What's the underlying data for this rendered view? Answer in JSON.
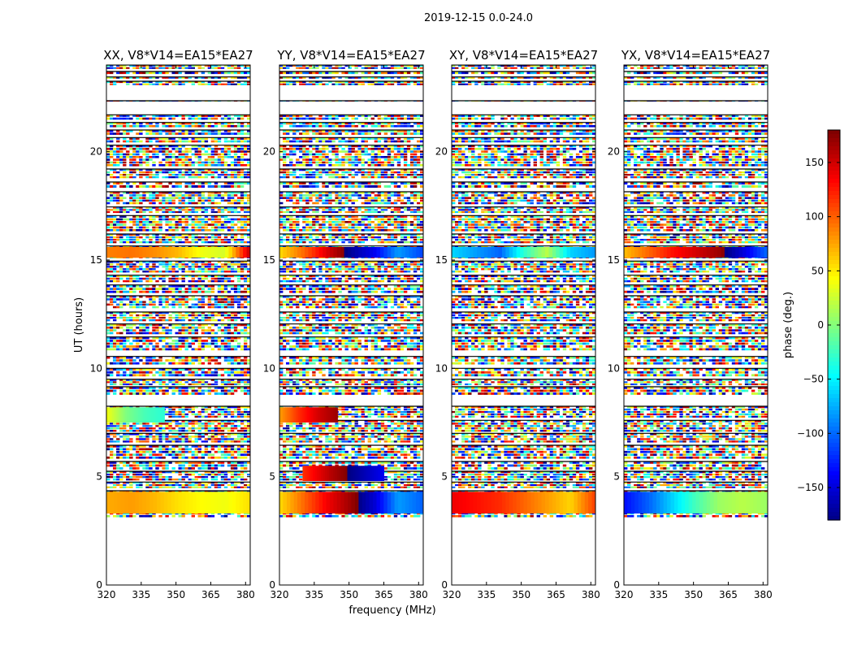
{
  "figure": {
    "suptitle": "2019-12-15 0.0-24.0"
  },
  "chart_data": {
    "type": "heatmap",
    "suptitle": "2019-12-15 0.0-24.0",
    "xlabel": "frequency (MHz)",
    "ylabel": "UT (hours)",
    "xlim": [
      320,
      382
    ],
    "ylim": [
      0,
      24
    ],
    "xticks": [
      320,
      335,
      350,
      365,
      380
    ],
    "yticks": [
      0,
      5,
      10,
      15,
      20
    ],
    "panels": [
      {
        "title": "XX, V8*V14=EA15*EA27",
        "polarization": "XX",
        "coherent_bands": [
          {
            "ut": [
              3.3,
              4.3
            ],
            "freq": [
              320,
              382
            ],
            "phase": [
              75,
              80,
              70,
              55,
              45,
              40,
              55
            ]
          },
          {
            "ut": [
              15.1,
              15.6
            ],
            "freq": [
              320,
              382
            ],
            "phase": [
              90,
              95,
              85,
              70,
              40,
              30,
              150
            ]
          },
          {
            "ut": [
              7.5,
              8.2
            ],
            "freq": [
              320,
              345
            ],
            "phase": [
              40,
              0,
              -20,
              -30
            ]
          }
        ]
      },
      {
        "title": "YY, V8*V14=EA15*EA27",
        "polarization": "YY",
        "coherent_bands": [
          {
            "ut": [
              3.3,
              4.3
            ],
            "freq": [
              320,
              382
            ],
            "phase": [
              60,
              100,
              140,
              170,
              -150,
              -80,
              -100
            ]
          },
          {
            "ut": [
              15.1,
              15.6
            ],
            "freq": [
              320,
              382
            ],
            "phase": [
              60,
              100,
              150,
              -170,
              -140,
              -80,
              -110
            ]
          },
          {
            "ut": [
              7.5,
              8.2
            ],
            "freq": [
              320,
              345
            ],
            "phase": [
              80,
              120,
              150,
              170
            ]
          },
          {
            "ut": [
              4.8,
              5.5
            ],
            "freq": [
              330,
              365
            ],
            "phase": [
              120,
              160,
              -170,
              -140
            ]
          }
        ]
      },
      {
        "title": "XY, V8*V14=EA15*EA27",
        "polarization": "XY",
        "coherent_bands": [
          {
            "ut": [
              3.3,
              4.3
            ],
            "freq": [
              320,
              382
            ],
            "phase": [
              140,
              130,
              120,
              100,
              80,
              60,
              110
            ]
          },
          {
            "ut": [
              15.1,
              15.6
            ],
            "freq": [
              320,
              382
            ],
            "phase": [
              -60,
              -80,
              -100,
              -30,
              20,
              -60,
              -80
            ]
          }
        ]
      },
      {
        "title": "YX, V8*V14=EA15*EA27",
        "polarization": "YX",
        "coherent_bands": [
          {
            "ut": [
              3.3,
              4.3
            ],
            "freq": [
              320,
              382
            ],
            "phase": [
              -130,
              -100,
              -60,
              -20,
              10,
              20,
              10
            ]
          },
          {
            "ut": [
              15.1,
              15.6
            ],
            "freq": [
              320,
              382
            ],
            "phase": [
              70,
              100,
              130,
              150,
              170,
              -150,
              -100
            ]
          }
        ]
      }
    ],
    "data_ut_ranges": [
      [
        3.1,
        4.35
      ],
      [
        4.45,
        4.75
      ],
      [
        4.8,
        5.25
      ],
      [
        5.3,
        5.7
      ],
      [
        5.8,
        6.45
      ],
      [
        6.55,
        7.0
      ],
      [
        7.05,
        7.6
      ],
      [
        7.7,
        8.25
      ],
      [
        8.75,
        9.15
      ],
      [
        9.2,
        9.5
      ],
      [
        9.6,
        10.0
      ],
      [
        10.15,
        10.55
      ],
      [
        10.8,
        11.45
      ],
      [
        11.55,
        12.05
      ],
      [
        12.15,
        12.6
      ],
      [
        12.75,
        13.35
      ],
      [
        13.45,
        13.85
      ],
      [
        13.95,
        14.3
      ],
      [
        14.4,
        14.95
      ],
      [
        15.05,
        15.65
      ],
      [
        15.75,
        16.2
      ],
      [
        16.3,
        17.05
      ],
      [
        17.15,
        17.45
      ],
      [
        17.55,
        18.15
      ],
      [
        18.3,
        18.6
      ],
      [
        18.75,
        19.2
      ],
      [
        19.3,
        20.3
      ],
      [
        20.4,
        20.65
      ],
      [
        20.75,
        21.0
      ],
      [
        21.1,
        21.35
      ],
      [
        21.45,
        21.7
      ],
      [
        22.3,
        22.35
      ],
      [
        23.05,
        23.25
      ],
      [
        23.35,
        23.45
      ],
      [
        23.55,
        23.7
      ],
      [
        23.8,
        24.0
      ]
    ],
    "colorbar": {
      "label": "phase (deg.)",
      "range": [
        -180,
        180
      ],
      "ticks": [
        150,
        100,
        50,
        0,
        -50,
        -100,
        -150
      ],
      "tick_labels": [
        "150",
        "100",
        "50",
        "0",
        "−50",
        "−100",
        "−150"
      ],
      "colormap": "jet"
    }
  }
}
